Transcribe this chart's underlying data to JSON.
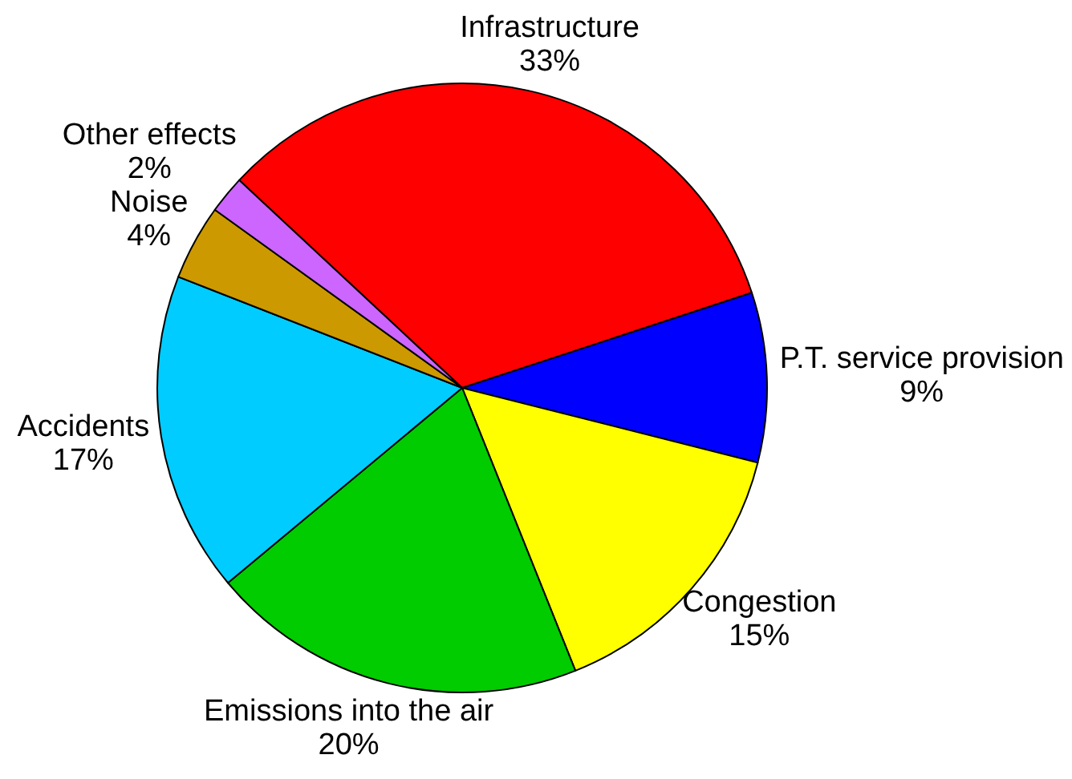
{
  "chart_data": {
    "type": "pie",
    "categories": [
      "Infrastructure",
      "P.T. service provision",
      "Congestion",
      "Emissions into the air",
      "Accidents",
      "Noise",
      "Other effects"
    ],
    "values": [
      33,
      9,
      15,
      20,
      17,
      4,
      2
    ],
    "value_labels": [
      "33%",
      "9%",
      "15%",
      "20%",
      "17%",
      "4%",
      "2%"
    ],
    "colors": [
      "#ff0000",
      "#0000ff",
      "#ffff00",
      "#00cc00",
      "#00ccff",
      "#cc9900",
      "#cc66ff"
    ],
    "legend": false
  }
}
